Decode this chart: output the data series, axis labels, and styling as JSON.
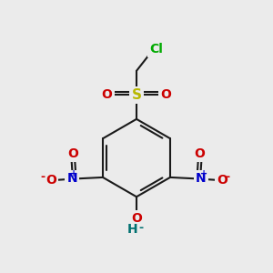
{
  "bg_color": "#ebebeb",
  "bond_color": "#1a1a1a",
  "bond_width": 1.5,
  "colors": {
    "C": "#1a1a1a",
    "O": "#cc0000",
    "N": "#0000cc",
    "S": "#b8b800",
    "Cl": "#00aa00",
    "H": "#007070"
  },
  "fs": 10
}
